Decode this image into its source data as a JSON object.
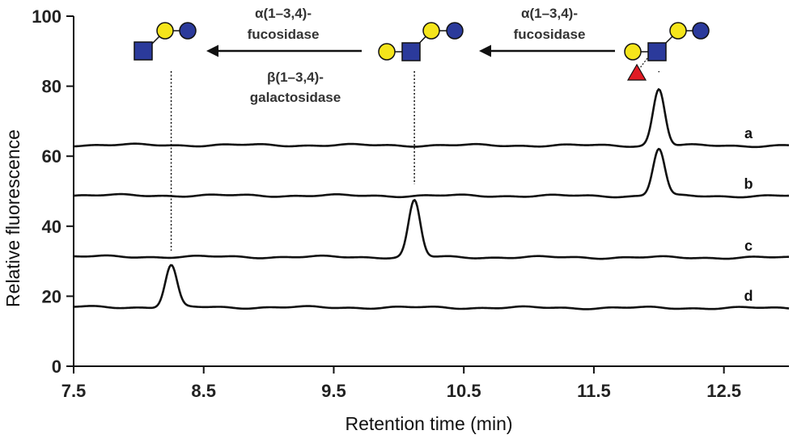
{
  "chart_data": {
    "type": "line",
    "xlabel": "Retention time (min)",
    "ylabel": "Relative fluorescence",
    "xlim": [
      7.5,
      13.0
    ],
    "ylim": [
      0,
      100
    ],
    "x_ticks": [
      "7.5",
      "8.5",
      "9.5",
      "10.5",
      "11.5",
      "12.5"
    ],
    "y_ticks": [
      "0",
      "20",
      "40",
      "60",
      "80",
      "100"
    ],
    "grid": false,
    "series": [
      {
        "name": "a",
        "baseline": [
          [
            7.5,
            63.2
          ],
          [
            13.0,
            63.0
          ]
        ],
        "peaks": [
          {
            "x": 12.0,
            "y": 79.2,
            "width": 0.045
          }
        ]
      },
      {
        "name": "b",
        "baseline": [
          [
            7.5,
            48.8
          ],
          [
            13.0,
            48.6
          ]
        ],
        "peaks": [
          {
            "x": 12.0,
            "y": 62.1,
            "width": 0.045
          }
        ]
      },
      {
        "name": "c",
        "baseline": [
          [
            7.5,
            31.3
          ],
          [
            13.0,
            31.0
          ]
        ],
        "peaks": [
          {
            "x": 10.12,
            "y": 47.3,
            "width": 0.045
          }
        ]
      },
      {
        "name": "d",
        "baseline": [
          [
            7.5,
            16.9
          ],
          [
            13.0,
            16.6
          ]
        ],
        "peaks": [
          {
            "x": 8.25,
            "y": 28.8,
            "width": 0.045
          }
        ]
      }
    ],
    "annotations": {
      "enzymes": [
        {
          "line1": "α(1–3,4)-",
          "line2": "fucosidase"
        },
        {
          "line1": "α(1–3,4)-",
          "line2": "fucosidase"
        },
        {
          "line1": "β(1–3,4)-",
          "line2": "galactosidase"
        }
      ],
      "marker_lines_x": [
        8.25,
        10.12,
        12.0
      ]
    },
    "colors": {
      "trace": "#111111",
      "galactose": "#f5e51b",
      "glcnac": "#2b3a9b",
      "glucose": "#2b3a9b",
      "fucose": "#e01b24"
    }
  }
}
